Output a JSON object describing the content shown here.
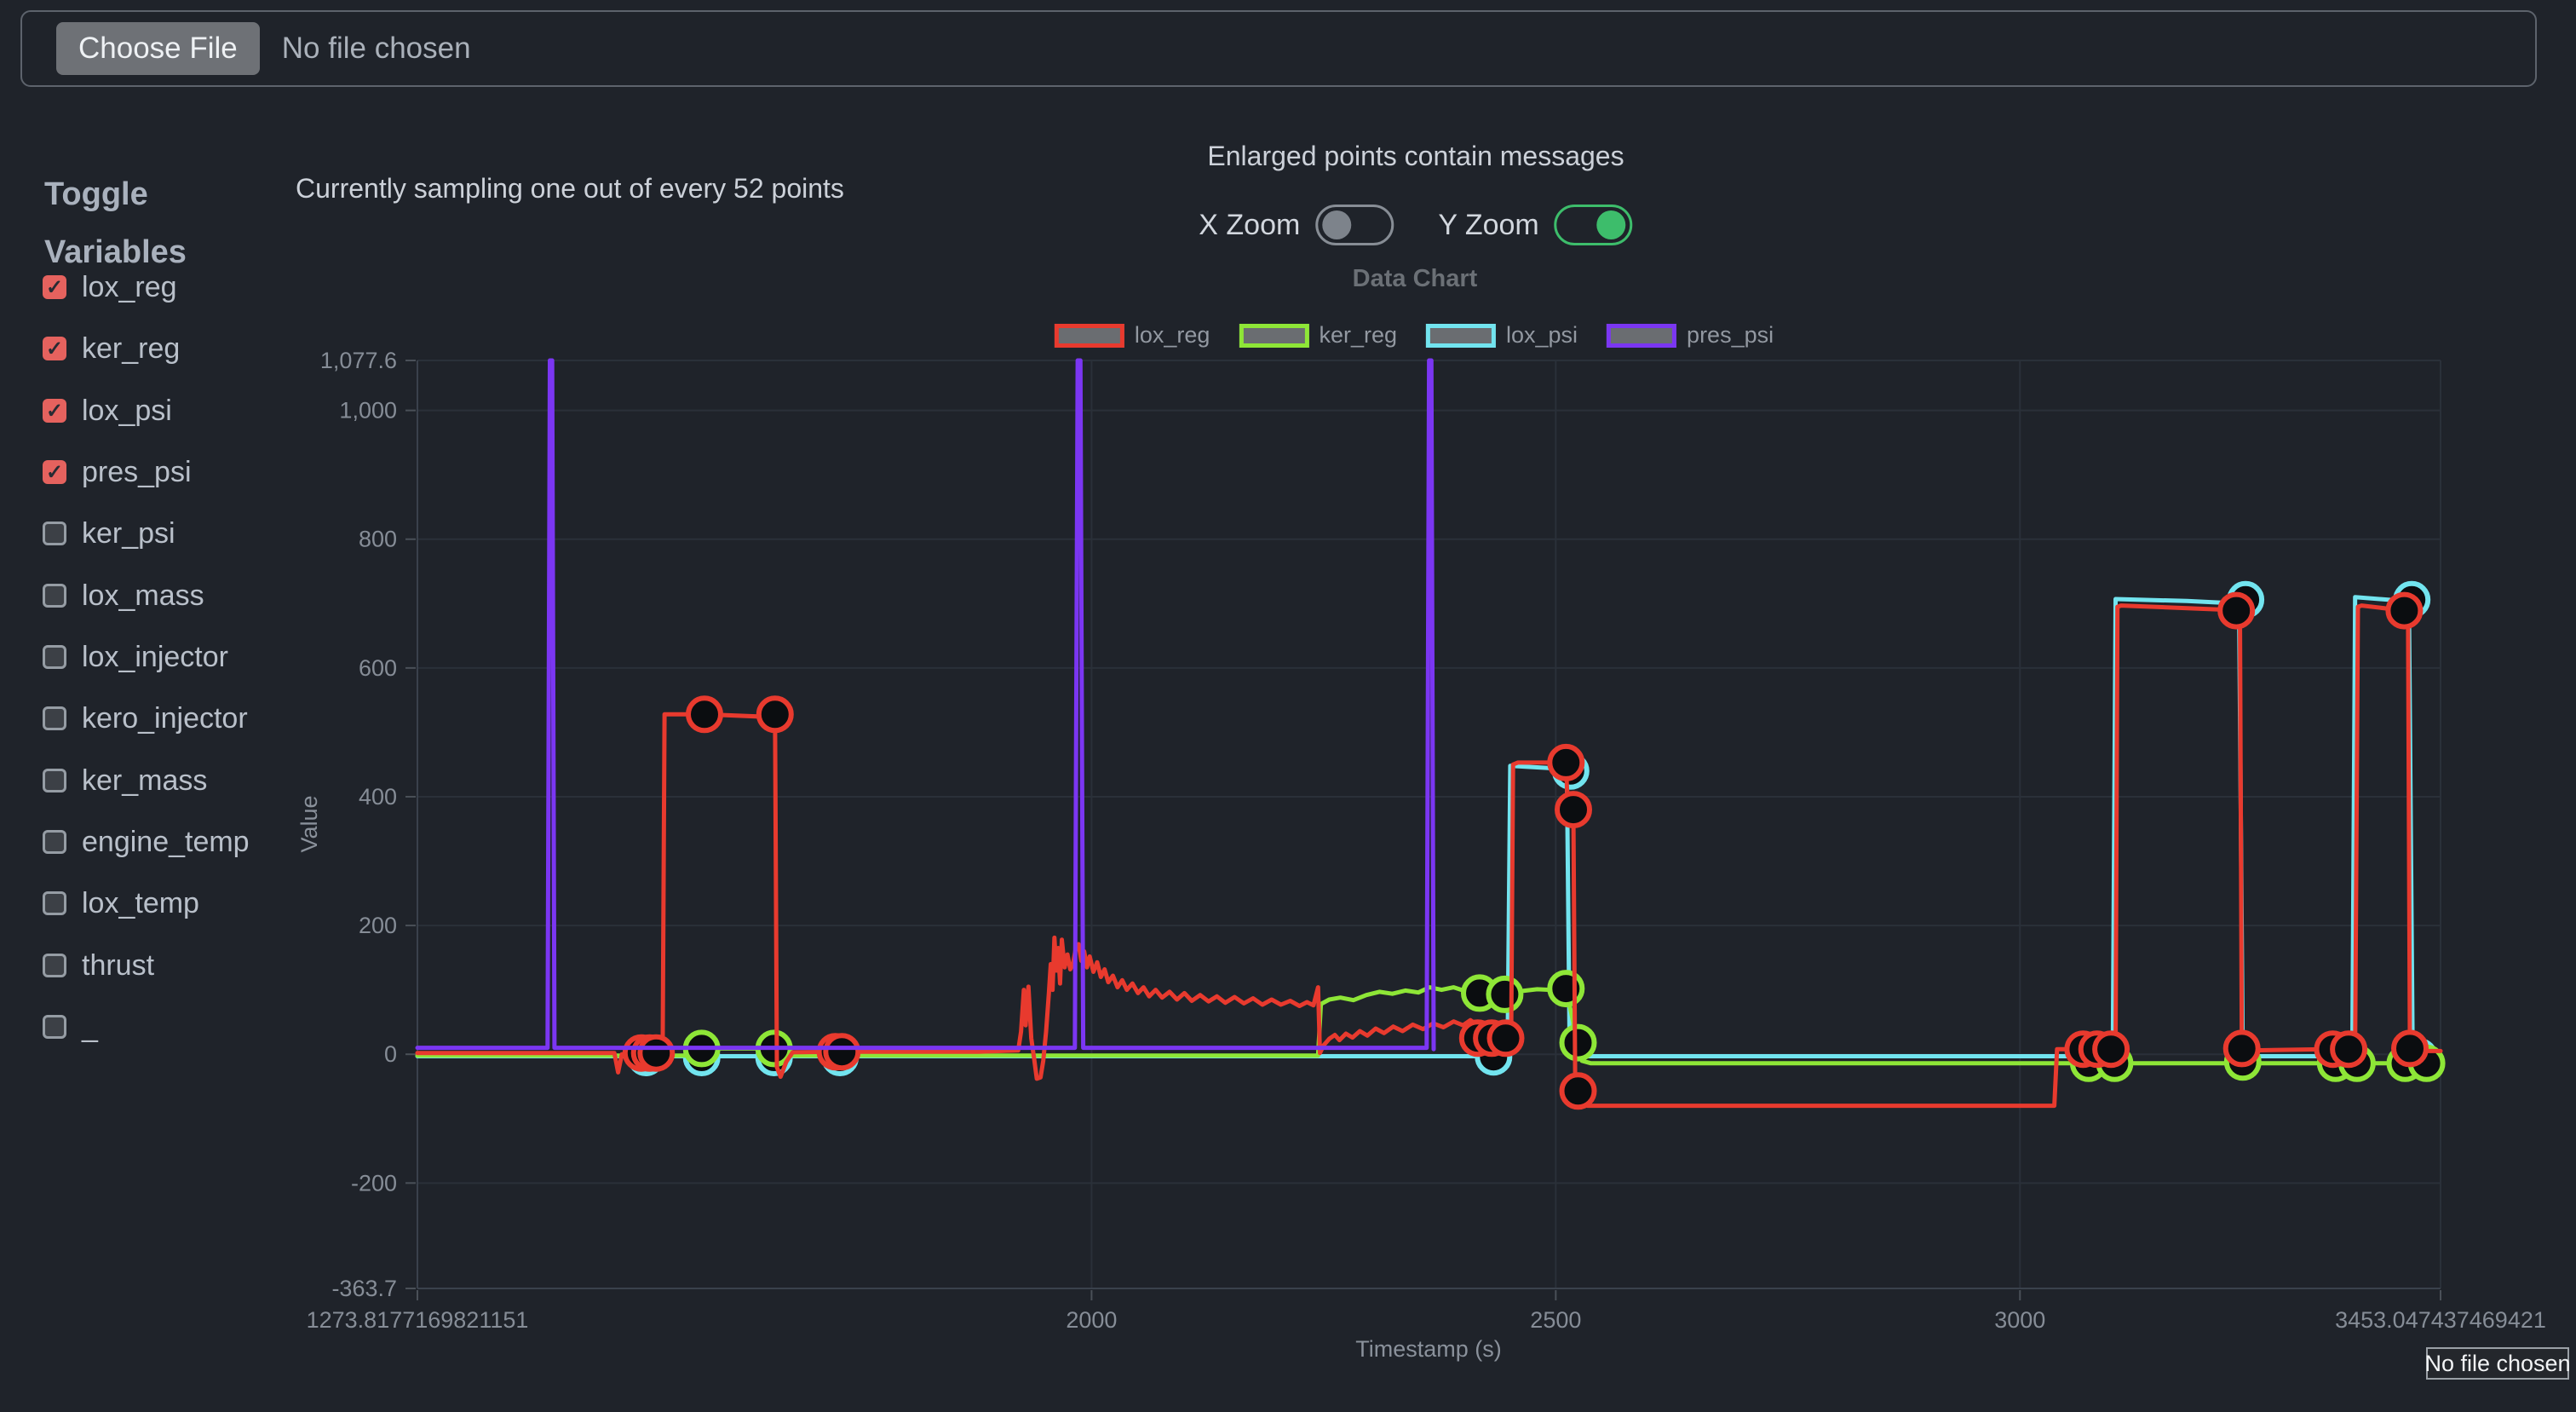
{
  "file_bar": {
    "button_label": "Choose File",
    "status": "No file chosen"
  },
  "tooltip": {
    "text": "No file chosen"
  },
  "sidebar": {
    "title_line1": "Toggle",
    "title_line2": "Variables",
    "items": [
      {
        "label": "lox_reg",
        "checked": true
      },
      {
        "label": "ker_reg",
        "checked": true
      },
      {
        "label": "lox_psi",
        "checked": true
      },
      {
        "label": "pres_psi",
        "checked": true
      },
      {
        "label": "ker_psi",
        "checked": false
      },
      {
        "label": "lox_mass",
        "checked": false
      },
      {
        "label": "lox_injector",
        "checked": false
      },
      {
        "label": "kero_injector",
        "checked": false
      },
      {
        "label": "ker_mass",
        "checked": false
      },
      {
        "label": "engine_temp",
        "checked": false
      },
      {
        "label": "lox_temp",
        "checked": false
      },
      {
        "label": "thrust",
        "checked": false
      },
      {
        "label": "_",
        "checked": false
      }
    ]
  },
  "header": {
    "sampling_note": "Currently sampling one out of every 52 points",
    "points_note": "Enlarged points contain messages",
    "x_zoom_label": "X Zoom",
    "y_zoom_label": "Y Zoom",
    "x_zoom_on": false,
    "y_zoom_on": true
  },
  "colors": {
    "background": "#1f232a",
    "grid": "#2a3039",
    "axis_border": "#3a414c",
    "tick_stub": "#4a5058",
    "tick_text": "#868d97",
    "axis_title_text": "#8a919b",
    "checkbox_checked": "#e5625e",
    "toggle_on": "#3dbd6b",
    "point_fill": "#0b0d10",
    "legend_swatch_fill": "#6a6d71"
  },
  "chart_data": {
    "type": "line",
    "title": "Data Chart",
    "xlabel": "Timestamp (s)",
    "ylabel": "Value",
    "xlim": [
      1273.8177169821151,
      3453.047437469421
    ],
    "ylim": [
      -363.7,
      1077.6
    ],
    "grid": true,
    "legend_position": "top",
    "x_ticks": [
      {
        "v": 1273.8177169821151,
        "label": "1273.8177169821151"
      },
      {
        "v": 2000,
        "label": "2000"
      },
      {
        "v": 2500,
        "label": "2500"
      },
      {
        "v": 3000,
        "label": "3000"
      },
      {
        "v": 3453.047437469421,
        "label": "3453.047437469421"
      }
    ],
    "y_ticks": [
      {
        "v": 1077.6,
        "label": "1,077.6"
      },
      {
        "v": 1000,
        "label": "1,000"
      },
      {
        "v": 800,
        "label": "800"
      },
      {
        "v": 600,
        "label": "600"
      },
      {
        "v": 400,
        "label": "400"
      },
      {
        "v": 200,
        "label": "200"
      },
      {
        "v": 0,
        "label": "0"
      },
      {
        "v": -200,
        "label": "-200"
      },
      {
        "v": -363.7,
        "label": "-363.7"
      }
    ],
    "legend": [
      {
        "name": "lox_reg",
        "color": "#e83a2e"
      },
      {
        "name": "ker_reg",
        "color": "#8ee637"
      },
      {
        "name": "lox_psi",
        "color": "#72e4ef"
      },
      {
        "name": "pres_psi",
        "color": "#7b36f2"
      }
    ],
    "series": [
      {
        "name": "lox_psi",
        "color": "#72e4ef",
        "points": [
          [
            1273.82,
            -3
          ],
          [
            2448,
            -3
          ],
          [
            2451,
            448
          ],
          [
            2500,
            444
          ],
          [
            2512,
            438
          ],
          [
            2515,
            -3
          ],
          [
            3100,
            -3
          ],
          [
            3103,
            707
          ],
          [
            3180,
            704
          ],
          [
            3236,
            700
          ],
          [
            3240,
            -3
          ],
          [
            3358,
            -3
          ],
          [
            3361,
            710
          ],
          [
            3405,
            705
          ],
          [
            3419,
            700
          ],
          [
            3423,
            -3
          ],
          [
            3453.05,
            -3
          ]
        ],
        "enlarged": [
          [
            1520,
            -5
          ],
          [
            1580,
            -5
          ],
          [
            1658,
            -5
          ],
          [
            1729,
            -5
          ],
          [
            2433,
            -4
          ],
          [
            2516,
            440
          ],
          [
            3086,
            -4
          ],
          [
            3243,
            706
          ],
          [
            3352,
            -4
          ],
          [
            3422,
            706
          ],
          [
            3430,
            -4
          ]
        ]
      },
      {
        "name": "ker_reg",
        "color": "#8ee637",
        "points": [
          [
            1273.82,
            -2
          ],
          [
            1568,
            -2
          ],
          [
            1572,
            9
          ],
          [
            1661,
            9
          ],
          [
            1666,
            -2
          ],
          [
            2244,
            -2
          ],
          [
            2247,
            78
          ],
          [
            2256,
            85
          ],
          [
            2268,
            88
          ],
          [
            2282,
            84
          ],
          [
            2296,
            92
          ],
          [
            2310,
            97
          ],
          [
            2324,
            94
          ],
          [
            2338,
            99
          ],
          [
            2352,
            96
          ],
          [
            2364,
            104
          ],
          [
            2377,
            100
          ],
          [
            2390,
            104
          ],
          [
            2403,
            98
          ],
          [
            2418,
            95
          ],
          [
            2430,
            92
          ],
          [
            2445,
            93
          ],
          [
            2456,
            97
          ],
          [
            2468,
            99
          ],
          [
            2480,
            101
          ],
          [
            2494,
            100
          ],
          [
            2511,
            102
          ],
          [
            2517,
            62
          ],
          [
            2523,
            20
          ],
          [
            2528,
            -10
          ],
          [
            2538,
            -14
          ],
          [
            3453.05,
            -14
          ]
        ],
        "enlarged": [
          [
            1580,
            9
          ],
          [
            1658,
            9
          ],
          [
            2418,
            95
          ],
          [
            2445,
            93
          ],
          [
            2511,
            102
          ],
          [
            2524,
            18
          ],
          [
            3074,
            -14
          ],
          [
            3102,
            -14
          ],
          [
            3240,
            -12
          ],
          [
            3340,
            -14
          ],
          [
            3363,
            -14
          ],
          [
            3415,
            -14
          ],
          [
            3438,
            -14
          ]
        ]
      },
      {
        "name": "lox_reg",
        "color": "#e83a2e",
        "points": [
          [
            1273.82,
            2
          ],
          [
            1486,
            2
          ],
          [
            1490,
            -28
          ],
          [
            1494,
            0
          ],
          [
            1505,
            2
          ],
          [
            1538,
            2
          ],
          [
            1540,
            528
          ],
          [
            1583,
            528
          ],
          [
            1652,
            524
          ],
          [
            1659,
            528
          ],
          [
            1661,
            -20
          ],
          [
            1665,
            -35
          ],
          [
            1671,
            -12
          ],
          [
            1678,
            3
          ],
          [
            1724,
            4
          ],
          [
            1731,
            4
          ],
          [
            1878,
            4
          ],
          [
            1921,
            6
          ],
          [
            1924,
            35
          ],
          [
            1927,
            100
          ],
          [
            1929,
            45
          ],
          [
            1932,
            105
          ],
          [
            1935,
            25
          ],
          [
            1938,
            -5
          ],
          [
            1941,
            -38
          ],
          [
            1945,
            -36
          ],
          [
            1948,
            -10
          ],
          [
            1951,
            35
          ],
          [
            1954,
            95
          ],
          [
            1956,
            140
          ],
          [
            1958,
            100
          ],
          [
            1960,
            181
          ],
          [
            1962,
            130
          ],
          [
            1964,
            165
          ],
          [
            1966,
            110
          ],
          [
            1968,
            178
          ],
          [
            1971,
            135
          ],
          [
            1974,
            155
          ],
          [
            1977,
            132
          ],
          [
            1980,
            140
          ],
          [
            1983,
            165
          ],
          [
            1986,
            171
          ],
          [
            1989,
            145
          ],
          [
            1992,
            160
          ],
          [
            1995,
            135
          ],
          [
            1998,
            152
          ],
          [
            2002,
            128
          ],
          [
            2006,
            143
          ],
          [
            2010,
            120
          ],
          [
            2014,
            132
          ],
          [
            2018,
            112
          ],
          [
            2023,
            122
          ],
          [
            2028,
            104
          ],
          [
            2033,
            115
          ],
          [
            2038,
            100
          ],
          [
            2044,
            110
          ],
          [
            2050,
            95
          ],
          [
            2056,
            104
          ],
          [
            2062,
            90
          ],
          [
            2069,
            100
          ],
          [
            2076,
            88
          ],
          [
            2084,
            97
          ],
          [
            2092,
            85
          ],
          [
            2100,
            95
          ],
          [
            2108,
            83
          ],
          [
            2117,
            92
          ],
          [
            2126,
            82
          ],
          [
            2135,
            90
          ],
          [
            2144,
            80
          ],
          [
            2154,
            89
          ],
          [
            2164,
            79
          ],
          [
            2174,
            87
          ],
          [
            2184,
            77
          ],
          [
            2194,
            85
          ],
          [
            2204,
            77
          ],
          [
            2214,
            83
          ],
          [
            2224,
            75
          ],
          [
            2232,
            81
          ],
          [
            2239,
            76
          ],
          [
            2244,
            104
          ],
          [
            2246,
            2
          ],
          [
            2250,
            14
          ],
          [
            2256,
            24
          ],
          [
            2262,
            30
          ],
          [
            2267,
            22
          ],
          [
            2274,
            32
          ],
          [
            2281,
            26
          ],
          [
            2289,
            36
          ],
          [
            2297,
            29
          ],
          [
            2306,
            40
          ],
          [
            2315,
            33
          ],
          [
            2325,
            43
          ],
          [
            2335,
            36
          ],
          [
            2346,
            46
          ],
          [
            2357,
            39
          ],
          [
            2368,
            48
          ],
          [
            2379,
            42
          ],
          [
            2390,
            51
          ],
          [
            2400,
            45
          ],
          [
            2408,
            53
          ],
          [
            2413,
            48
          ],
          [
            2416,
            25
          ],
          [
            2447,
            25
          ],
          [
            2452,
            27
          ],
          [
            2454,
            450
          ],
          [
            2459,
            453
          ],
          [
            2511,
            453
          ],
          [
            2513,
            380
          ],
          [
            2519,
            380
          ],
          [
            2521,
            -57
          ],
          [
            2524,
            -57
          ],
          [
            2527,
            -78
          ],
          [
            2534,
            -80
          ],
          [
            3037,
            -80
          ],
          [
            3040,
            8
          ],
          [
            3103,
            8
          ],
          [
            3105,
            695
          ],
          [
            3109,
            697
          ],
          [
            3229,
            690
          ],
          [
            3233,
            689
          ],
          [
            3237,
            689
          ],
          [
            3239,
            9
          ],
          [
            3245,
            6
          ],
          [
            3330,
            8
          ],
          [
            3361,
            8
          ],
          [
            3364,
            695
          ],
          [
            3368,
            697
          ],
          [
            3409,
            690
          ],
          [
            3414,
            689
          ],
          [
            3418,
            689
          ],
          [
            3420,
            9
          ],
          [
            3426,
            5
          ],
          [
            3453.05,
            5
          ]
        ],
        "enlarged": [
          [
            1515,
            2
          ],
          [
            1524,
            2
          ],
          [
            1531,
            2
          ],
          [
            1583,
            528
          ],
          [
            1659,
            528
          ],
          [
            1724,
            4
          ],
          [
            1731,
            4
          ],
          [
            2416,
            25
          ],
          [
            2431,
            25
          ],
          [
            2446,
            25
          ],
          [
            2511,
            453
          ],
          [
            2519,
            380
          ],
          [
            2524,
            -57
          ],
          [
            3068,
            8
          ],
          [
            3083,
            8
          ],
          [
            3098,
            8
          ],
          [
            3233,
            689
          ],
          [
            3239,
            9
          ],
          [
            3337,
            8
          ],
          [
            3354,
            8
          ],
          [
            3414,
            689
          ],
          [
            3420,
            9
          ]
        ]
      },
      {
        "name": "pres_psi",
        "color": "#7b36f2",
        "points": [
          [
            1273.82,
            10
          ],
          [
            1414,
            10
          ],
          [
            1416.5,
            1077.6
          ],
          [
            1419,
            1077.6
          ],
          [
            1421.5,
            10
          ],
          [
            1982,
            10
          ],
          [
            1985,
            1077.6
          ],
          [
            1988,
            1077.6
          ],
          [
            1991,
            10
          ],
          [
            2361,
            10
          ],
          [
            2363.5,
            1077.6
          ],
          [
            2366,
            1077.6
          ],
          [
            2368.5,
            8
          ]
        ],
        "enlarged": []
      }
    ]
  }
}
